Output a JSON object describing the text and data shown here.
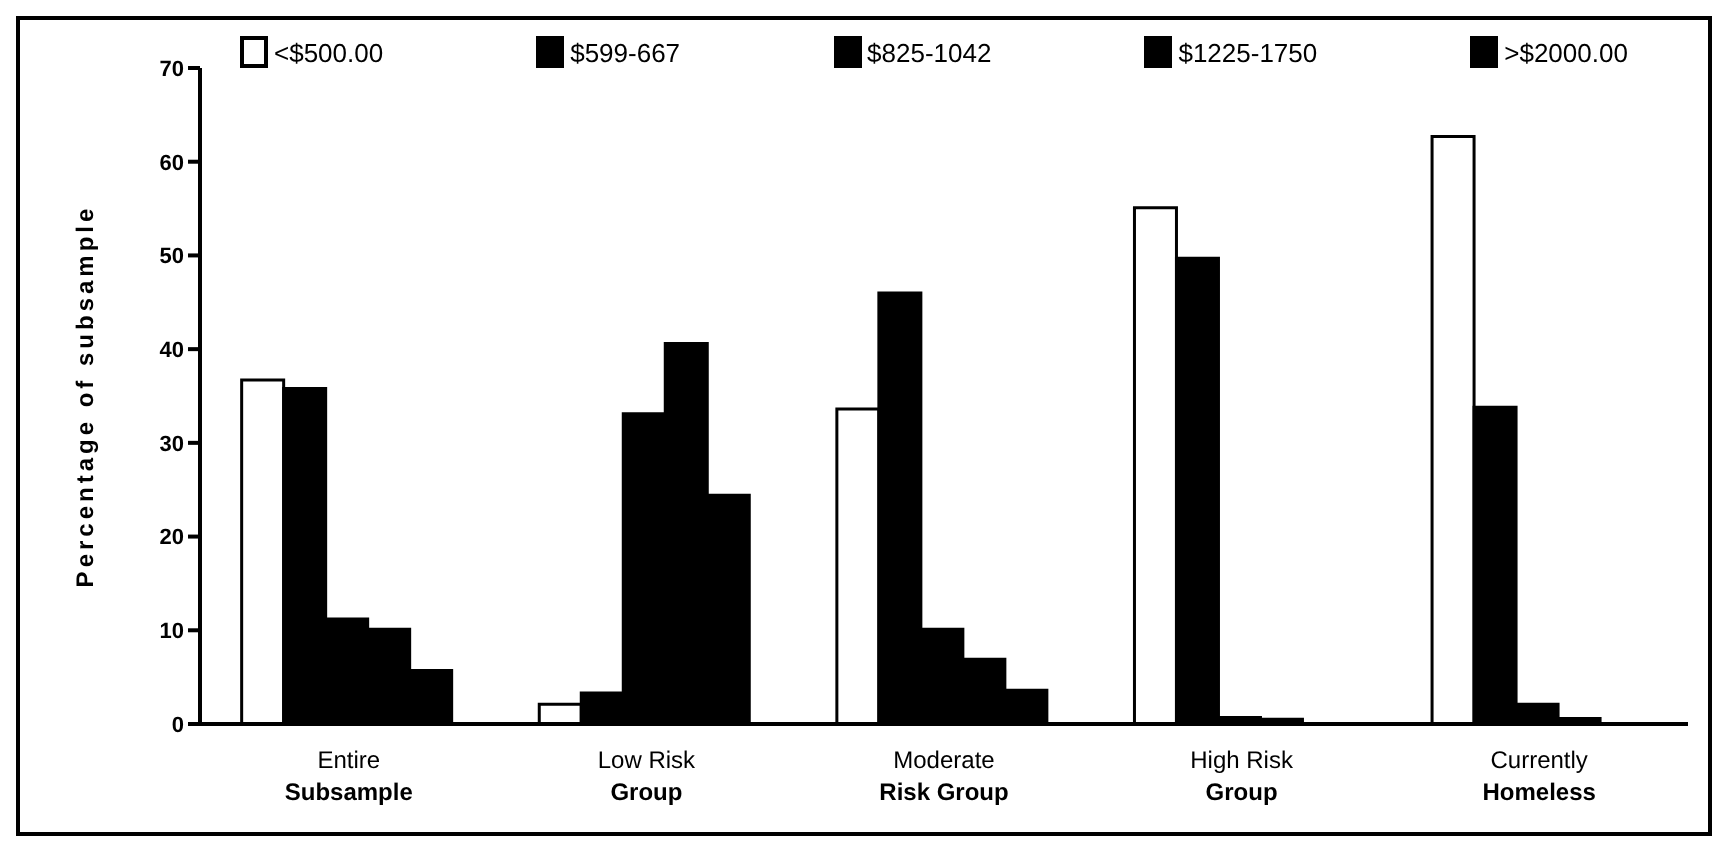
{
  "chart_data": {
    "type": "bar",
    "ylabel": "Percentage of subsample",
    "categories": [
      "Entire\nSubsample",
      "Low Risk\nGroup",
      "Moderate\nRisk Group",
      "High Risk\nGroup",
      "Currently\nHomeless"
    ],
    "series": [
      {
        "name": "<$500.00",
        "color": "#ffffff",
        "values": [
          36.7,
          2.1,
          33.6,
          55.1,
          62.7
        ]
      },
      {
        "name": "$599-667",
        "color": "#000000",
        "values": [
          35.8,
          3.3,
          46.0,
          49.7,
          33.8
        ]
      },
      {
        "name": "$825-1042",
        "color": "#000000",
        "values": [
          11.2,
          33.1,
          10.1,
          0.7,
          2.1
        ]
      },
      {
        "name": "$1225-1750",
        "color": "#000000",
        "values": [
          10.1,
          40.6,
          6.9,
          0.5,
          0.6
        ]
      },
      {
        "name": ">$2000.00",
        "color": "#000000",
        "values": [
          5.7,
          24.4,
          3.6,
          0,
          0
        ]
      }
    ],
    "ylim": [
      0,
      70
    ],
    "yticks": [
      0,
      10,
      20,
      30,
      40,
      50,
      60,
      70
    ],
    "grid": false,
    "legend": "top"
  }
}
